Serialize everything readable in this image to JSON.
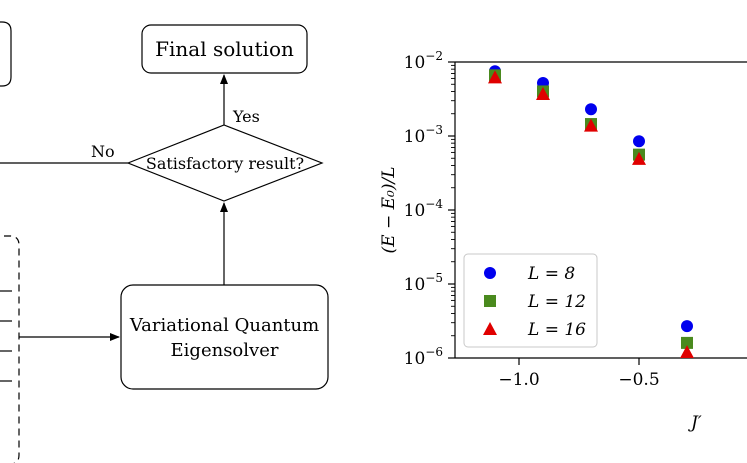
{
  "flowchart": {
    "final_solution": "Final solution",
    "decision": "Satisfactory result?",
    "yes_label": "Yes",
    "no_label": "No",
    "vqe_line1": "Variational Quantum",
    "vqe_line2": "Eigensolver"
  },
  "chart_data": {
    "type": "scatter",
    "xlabel": "J′",
    "ylabel": "(E − E₀)/L",
    "yscale": "log",
    "xlim": [
      -1.2,
      -0.2
    ],
    "ylim": [
      1e-06,
      0.01
    ],
    "xticks": [
      {
        "value": -1.0,
        "label": "−1.0"
      },
      {
        "value": -0.5,
        "label": "−0.5"
      }
    ],
    "yticks": [
      {
        "value": 0.01,
        "base": "10",
        "exp": "−2"
      },
      {
        "value": 0.001,
        "base": "10",
        "exp": "−3"
      },
      {
        "value": 0.0001,
        "base": "10",
        "exp": "−4"
      },
      {
        "value": 1e-05,
        "base": "10",
        "exp": "−5"
      },
      {
        "value": 1e-06,
        "base": "10",
        "exp": "−6"
      }
    ],
    "legend_position": "lower-left",
    "series": [
      {
        "name": "L = 8",
        "marker": "circle",
        "color": "#0000ee",
        "x": [
          -1.1,
          -0.9,
          -0.7,
          -0.5,
          -0.3
        ],
        "y": [
          0.0075,
          0.0052,
          0.0023,
          0.00085,
          2.7e-06
        ]
      },
      {
        "name": "L = 12",
        "marker": "square",
        "color": "#4a8a1e",
        "x": [
          -1.1,
          -0.9,
          -0.7,
          -0.5,
          -0.3
        ],
        "y": [
          0.0066,
          0.004,
          0.00145,
          0.00056,
          1.6e-06
        ]
      },
      {
        "name": "L = 16",
        "marker": "triangle",
        "color": "#e00000",
        "x": [
          -1.1,
          -0.9,
          -0.7,
          -0.5,
          -0.3
        ],
        "y": [
          0.0062,
          0.0037,
          0.00138,
          0.00049,
          1.2e-06
        ]
      }
    ]
  }
}
